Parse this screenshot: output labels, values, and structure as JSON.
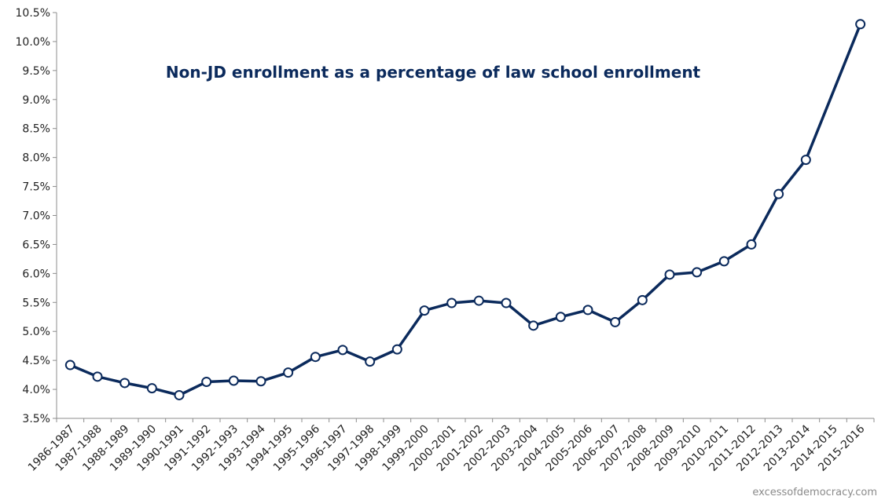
{
  "chart_data": {
    "type": "line",
    "title": "Non-JD enrollment as a percentage of law school enrollment",
    "xlabel": "",
    "ylabel": "",
    "ylim": [
      3.5,
      10.5
    ],
    "y_ticks": [
      "3.5%",
      "4.0%",
      "4.5%",
      "5.0%",
      "5.5%",
      "6.0%",
      "6.5%",
      "7.0%",
      "7.5%",
      "8.0%",
      "8.5%",
      "9.0%",
      "9.5%",
      "10.0%",
      "10.5%"
    ],
    "categories": [
      "1986-1987",
      "1987-1988",
      "1988-1989",
      "1989-1990",
      "1990-1991",
      "1991-1992",
      "1992-1993",
      "1993-1994",
      "1994-1995",
      "1995-1996",
      "1996-1997",
      "1997-1998",
      "1998-1999",
      "1999-2000",
      "2000-2001",
      "2001-2002",
      "2002-2003",
      "2003-2004",
      "2004-2005",
      "2005-2006",
      "2006-2007",
      "2007-2008",
      "2008-2009",
      "2009-2010",
      "2010-2011",
      "2011-2012",
      "2012-2013",
      "2013-2014",
      "2014-2015",
      "2015-2016"
    ],
    "values": [
      4.42,
      4.22,
      4.11,
      4.02,
      3.9,
      4.13,
      4.15,
      4.14,
      4.29,
      4.56,
      4.68,
      4.48,
      4.69,
      5.36,
      5.49,
      5.53,
      5.49,
      5.1,
      5.25,
      5.37,
      5.16,
      5.54,
      5.98,
      6.02,
      6.21,
      6.5,
      7.37,
      7.96,
      null,
      10.3
    ],
    "grid": false,
    "line_color": "#0b2a5c",
    "marker_fill": "#ffffff"
  },
  "credit": "excessofdemocracy.com"
}
